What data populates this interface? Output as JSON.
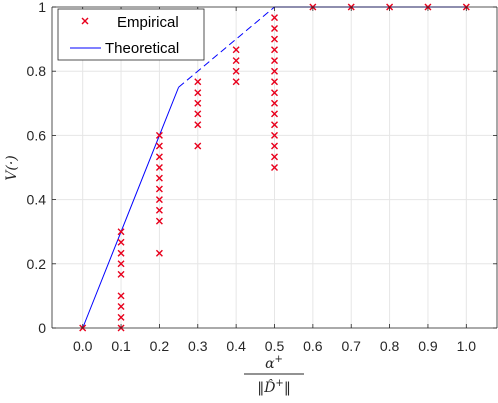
{
  "chart_data": {
    "type": "scatter",
    "title": "",
    "xlabel": {
      "numerator": "α",
      "numerator_sup": "+",
      "denominator": "‖D̂",
      "denominator_sup": "+",
      "denominator_close": "‖"
    },
    "ylabel": "V(·)",
    "xlim": [
      -0.08,
      1.08
    ],
    "ylim": [
      0,
      1
    ],
    "x_ticks": [
      0.0,
      0.1,
      0.2,
      0.3,
      0.4,
      0.5,
      0.6,
      0.7,
      0.8,
      0.9,
      1.0
    ],
    "x_tick_labels": [
      "0.0",
      "0.1",
      "0.2",
      "0.3",
      "0.4",
      "0.5",
      "0.6",
      "0.7",
      "0.8",
      "0.9",
      "1.0"
    ],
    "y_ticks": [
      0,
      0.2,
      0.4,
      0.6,
      0.8,
      1
    ],
    "y_tick_labels": [
      "0",
      "0.2",
      "0.4",
      "0.6",
      "0.8",
      "1"
    ],
    "grid": true,
    "legend_position": "top-left",
    "series": [
      {
        "name": "Empirical",
        "marker": "x",
        "color": "#e8001c",
        "points": [
          [
            0.0,
            0.0
          ],
          [
            0.1,
            0.0
          ],
          [
            0.1,
            0.033
          ],
          [
            0.1,
            0.067
          ],
          [
            0.1,
            0.1
          ],
          [
            0.1,
            0.167
          ],
          [
            0.1,
            0.2
          ],
          [
            0.1,
            0.233
          ],
          [
            0.1,
            0.267
          ],
          [
            0.1,
            0.3
          ],
          [
            0.2,
            0.233
          ],
          [
            0.2,
            0.333
          ],
          [
            0.2,
            0.367
          ],
          [
            0.2,
            0.4
          ],
          [
            0.2,
            0.433
          ],
          [
            0.2,
            0.467
          ],
          [
            0.2,
            0.5
          ],
          [
            0.2,
            0.533
          ],
          [
            0.2,
            0.567
          ],
          [
            0.2,
            0.6
          ],
          [
            0.3,
            0.567
          ],
          [
            0.3,
            0.633
          ],
          [
            0.3,
            0.667
          ],
          [
            0.3,
            0.7
          ],
          [
            0.3,
            0.733
          ],
          [
            0.3,
            0.767
          ],
          [
            0.4,
            0.767
          ],
          [
            0.4,
            0.8
          ],
          [
            0.4,
            0.833
          ],
          [
            0.4,
            0.867
          ],
          [
            0.5,
            0.5
          ],
          [
            0.5,
            0.533
          ],
          [
            0.5,
            0.567
          ],
          [
            0.5,
            0.6
          ],
          [
            0.5,
            0.633
          ],
          [
            0.5,
            0.667
          ],
          [
            0.5,
            0.7
          ],
          [
            0.5,
            0.733
          ],
          [
            0.5,
            0.767
          ],
          [
            0.5,
            0.8
          ],
          [
            0.5,
            0.833
          ],
          [
            0.5,
            0.867
          ],
          [
            0.5,
            0.9
          ],
          [
            0.5,
            0.933
          ],
          [
            0.5,
            0.967
          ],
          [
            0.6,
            1.0
          ],
          [
            0.7,
            1.0
          ],
          [
            0.8,
            1.0
          ],
          [
            0.9,
            1.0
          ],
          [
            1.0,
            1.0
          ]
        ]
      },
      {
        "name": "Theoretical",
        "color": "#0000ff",
        "segments": [
          {
            "style": "solid",
            "points": [
              [
                0.0,
                0.0
              ],
              [
                0.1,
                0.3
              ],
              [
                0.25,
                0.75
              ]
            ]
          },
          {
            "style": "dashed",
            "points": [
              [
                0.25,
                0.75
              ],
              [
                0.5,
                1.0
              ]
            ]
          },
          {
            "style": "solid",
            "points": [
              [
                0.5,
                1.0
              ],
              [
                1.0,
                1.0
              ]
            ]
          }
        ]
      }
    ]
  }
}
